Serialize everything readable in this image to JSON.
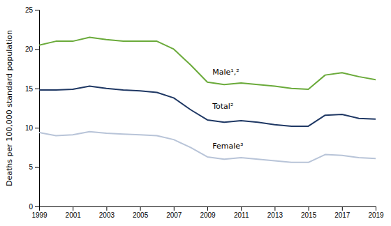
{
  "chart_data": {
    "type": "line",
    "x": [
      1999,
      2000,
      2001,
      2002,
      2003,
      2004,
      2005,
      2006,
      2007,
      2008,
      2009,
      2010,
      2011,
      2012,
      2013,
      2014,
      2015,
      2016,
      2017,
      2018,
      2019
    ],
    "series": [
      {
        "color": "#6aaa3a",
        "values": [
          20.5,
          21.0,
          21.0,
          21.5,
          21.2,
          21.0,
          21.0,
          21.0,
          20.0,
          18.0,
          15.8,
          15.5,
          15.7,
          15.5,
          15.3,
          15.0,
          14.9,
          16.7,
          17.0,
          16.5,
          16.1
        ]
      },
      {
        "color": "#1f3864",
        "values": [
          14.8,
          14.8,
          14.9,
          15.3,
          15.0,
          14.8,
          14.7,
          14.5,
          13.8,
          12.3,
          11.0,
          10.7,
          10.9,
          10.7,
          10.4,
          10.2,
          10.2,
          11.6,
          11.7,
          11.2,
          11.1
        ]
      },
      {
        "color": "#b8c4d8",
        "values": [
          9.4,
          9.0,
          9.1,
          9.5,
          9.3,
          9.2,
          9.1,
          9.0,
          8.5,
          7.5,
          6.3,
          6.0,
          6.2,
          6.0,
          5.8,
          5.6,
          5.6,
          6.6,
          6.5,
          6.2,
          6.1
        ]
      }
    ],
    "annotations": [
      {
        "text": "Male¹,²",
        "x": 2009.3,
        "y": 17.0
      },
      {
        "text": "Total²",
        "x": 2009.3,
        "y": 12.7
      },
      {
        "text": "Female³",
        "x": 2009.3,
        "y": 7.6
      }
    ],
    "ylabel": "Deaths per 100,000 standard population",
    "xlim": [
      1999,
      2019
    ],
    "xticks": [
      1999,
      2001,
      2003,
      2005,
      2007,
      2009,
      2011,
      2013,
      2015,
      2017,
      2019
    ],
    "ylim": [
      0,
      25
    ],
    "yticks": [
      0,
      5,
      10,
      15,
      20,
      25
    ],
    "grid": false
  }
}
